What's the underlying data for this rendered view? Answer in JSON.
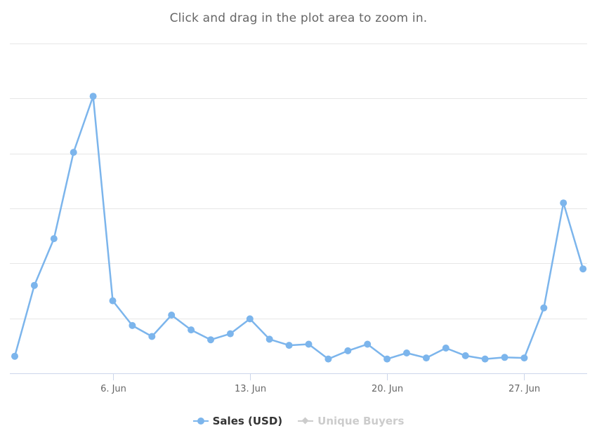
{
  "subtitle": "Click and drag in the plot area to zoom in.",
  "chart_data": {
    "type": "line",
    "x_ticks": [
      "6. Jun",
      "13. Jun",
      "20. Jun",
      "27. Jun"
    ],
    "x_tick_days": [
      6,
      13,
      20,
      27
    ],
    "x_range_days": [
      1,
      30
    ],
    "ylim": [
      0,
      6
    ],
    "grid": true,
    "legend_position": "bottom-center",
    "series": [
      {
        "name": "Sales (USD)",
        "color": "#7cb5ec",
        "visible": true,
        "marker": "circle",
        "days": [
          1,
          2,
          3,
          4,
          5,
          6,
          7,
          8,
          9,
          10,
          11,
          12,
          13,
          14,
          15,
          16,
          17,
          18,
          19,
          20,
          21,
          22,
          23,
          24,
          25,
          26,
          27,
          28,
          29,
          30
        ],
        "values": [
          0.31,
          1.6,
          2.45,
          4.02,
          5.04,
          1.32,
          0.87,
          0.67,
          1.06,
          0.79,
          0.61,
          0.72,
          0.99,
          0.62,
          0.51,
          0.53,
          0.26,
          0.41,
          0.53,
          0.26,
          0.37,
          0.28,
          0.46,
          0.32,
          0.26,
          0.29,
          0.28,
          1.19,
          3.1,
          1.9
        ]
      },
      {
        "name": "Unique Buyers",
        "color": "#cccccc",
        "visible": false,
        "marker": "diamond",
        "values": []
      }
    ]
  }
}
